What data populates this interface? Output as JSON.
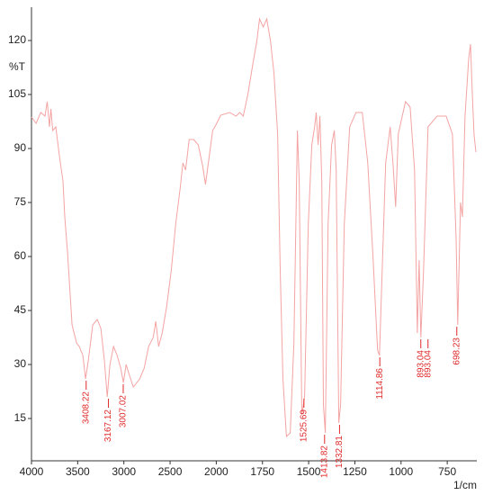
{
  "chart_data": {
    "type": "line",
    "y_label": "%T",
    "x_label": "1/cm",
    "xlim": [
      4000,
      590
    ],
    "x_expansion": {
      "below": 2000,
      "factor": 2
    },
    "xticks": [
      4000,
      3500,
      3000,
      2500,
      2000,
      1750,
      1500,
      1250,
      1000,
      750
    ],
    "ylim": [
      3.25,
      128.75
    ],
    "yticks": [
      15,
      30,
      45,
      60,
      75,
      90,
      105,
      120
    ],
    "grid": false,
    "series": [
      {
        "color": "#f4a3a3",
        "x": [
          4000,
          3950,
          3900,
          3854,
          3830,
          3805,
          3790,
          3770,
          3737,
          3698,
          3659,
          3640,
          3610,
          3561,
          3512,
          3483,
          3444,
          3415,
          3386,
          3337,
          3288,
          3249,
          3210,
          3180,
          3151,
          3112,
          3073,
          3034,
          3005,
          2976,
          2946,
          2898,
          2829,
          2780,
          2732,
          2683,
          2654,
          2624,
          2585,
          2537,
          2488,
          2439,
          2390,
          2361,
          2332,
          2293,
          2244,
          2195,
          2146,
          2117,
          2078,
          2039,
          2000,
          1976,
          1927,
          1893,
          1873,
          1854,
          1829,
          1805,
          1780,
          1766,
          1746,
          1727,
          1707,
          1688,
          1668,
          1654,
          1639,
          1620,
          1600,
          1580,
          1561,
          1551,
          1537,
          1522,
          1502,
          1483,
          1468,
          1459,
          1449,
          1439,
          1429,
          1420,
          1410,
          1395,
          1376,
          1361,
          1351,
          1337,
          1327,
          1307,
          1278,
          1244,
          1210,
          1180,
          1151,
          1127,
          1117,
          1102,
          1083,
          1059,
          1044,
          1029,
          1015,
          976,
          951,
          927,
          912,
          902,
          893,
          878,
          854,
          805,
          756,
          722,
          702,
          693,
          678,
          668,
          654,
          634,
          624,
          615,
          605,
          595
        ],
        "values": [
          98.75,
          97,
          100,
          99,
          103,
          96,
          101,
          95,
          96,
          88,
          81,
          71,
          61,
          41,
          36,
          35,
          32.5,
          26,
          31,
          41,
          42.5,
          40,
          31,
          21,
          30,
          35,
          32.5,
          29,
          25,
          30,
          27.5,
          23.75,
          26,
          29,
          35,
          37.5,
          42,
          35,
          38.75,
          46,
          56,
          69,
          79,
          86,
          84,
          92.5,
          92.5,
          91,
          85,
          80,
          87.5,
          95,
          96.75,
          99.25,
          100,
          99,
          100,
          99,
          105,
          112.5,
          120,
          126,
          123.75,
          126,
          120,
          111,
          94,
          56,
          26,
          10,
          11,
          36,
          95,
          81,
          16,
          21,
          69,
          91,
          96,
          100,
          91,
          99,
          81,
          18.75,
          11,
          69,
          91,
          95,
          84,
          13.75,
          18.75,
          69,
          96,
          100,
          100,
          86,
          59,
          34,
          32.5,
          56,
          86,
          96,
          86,
          73.75,
          94,
          103,
          101.5,
          84,
          38.75,
          59,
          37.5,
          56,
          96,
          99,
          99,
          94,
          65,
          41,
          75,
          71,
          99,
          115,
          119,
          106,
          94,
          89
        ]
      }
    ],
    "peaks": {
      "color": "#e02a2a",
      "x": [
        3408.22,
        3167.12,
        3007.02,
        1525.69,
        1413.82,
        1332.81,
        1114.86,
        893.04,
        893.04,
        698.23
      ],
      "y": [
        26,
        21,
        25,
        21,
        11,
        13.75,
        32.5,
        37.5,
        37.5,
        41
      ]
    }
  }
}
